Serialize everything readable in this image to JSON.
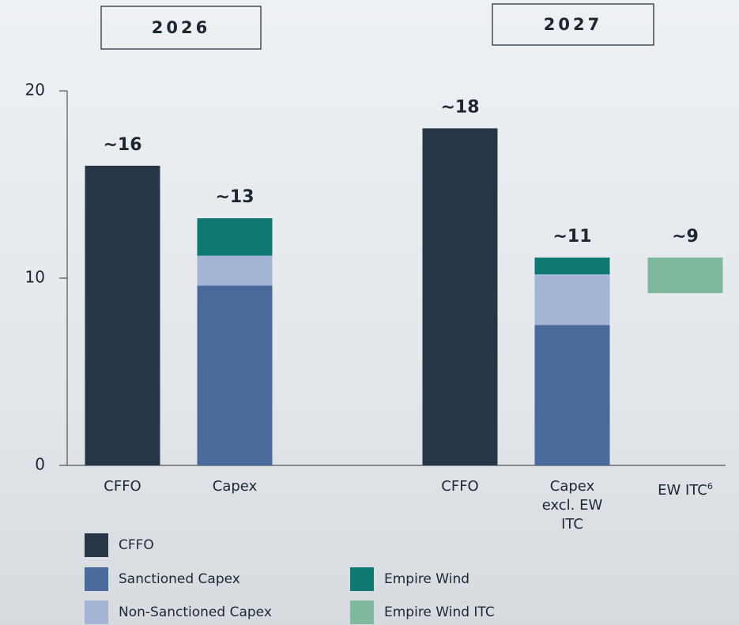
{
  "chart_data": {
    "type": "stacked_bar",
    "groups": [
      {
        "label": "2026",
        "categories": [
          0,
          1
        ]
      },
      {
        "label": "2027",
        "categories": [
          2,
          3,
          4
        ]
      }
    ],
    "categories": [
      "CFFO",
      "Capex",
      "CFFO",
      "Capex excl. EW ITC",
      "EW ITC"
    ],
    "category_notes": [
      null,
      null,
      null,
      null,
      "6"
    ],
    "series": [
      {
        "name": "CFFO",
        "color": "#263646",
        "values": [
          16,
          null,
          18,
          null,
          null
        ]
      },
      {
        "name": "Sanctioned Capex",
        "color": "#4a6a9b",
        "values": [
          null,
          9.6,
          null,
          7.5,
          null
        ]
      },
      {
        "name": "Non-Sanctioned Capex",
        "color": "#a3b4d4",
        "values": [
          null,
          1.6,
          null,
          2.7,
          null
        ]
      },
      {
        "name": "Empire Wind",
        "color": "#0f7870",
        "values": [
          null,
          2.0,
          null,
          0.9,
          null
        ]
      },
      {
        "name": "Empire Wind ITC",
        "color": "#7fb89d",
        "values": [
          null,
          null,
          null,
          null,
          -1.9
        ]
      }
    ],
    "waterfall": [
      false,
      false,
      false,
      false,
      true
    ],
    "value_labels": [
      "~16",
      "~13",
      "~18",
      "~11",
      "~9"
    ],
    "ylim": [
      0,
      20
    ],
    "yticks": [
      0,
      10,
      20
    ]
  }
}
